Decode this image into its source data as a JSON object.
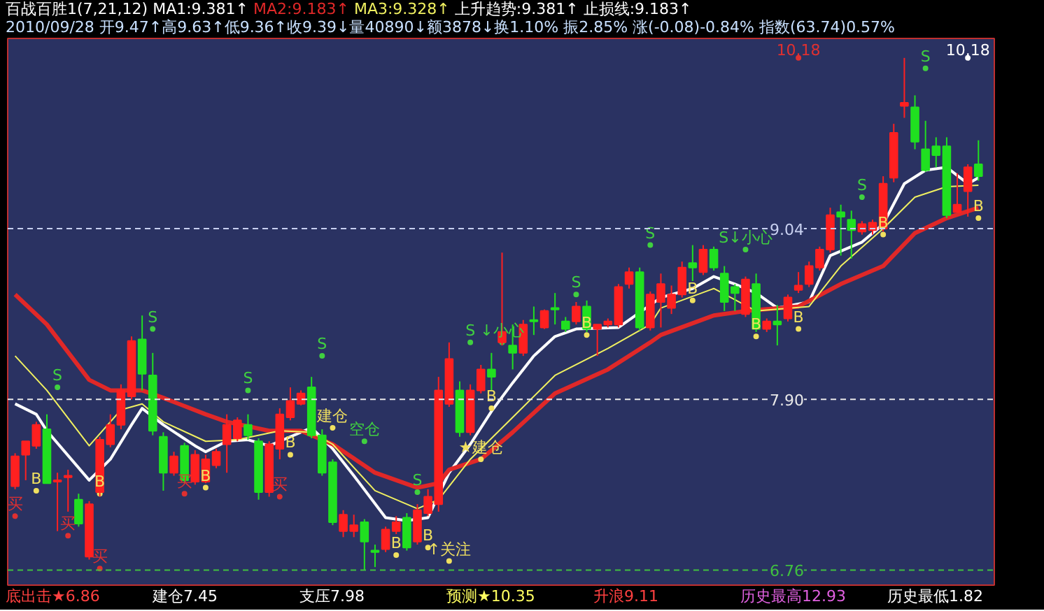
{
  "chart_data": {
    "type": "candlestick",
    "title": "百战百胜1(7,21,12)",
    "subtitle": "2010/09/28 开9.47↑高9.63↑低9.36↑收9.39↓量40890↓额3878↓换1.10% 振2.85% 涨(-0.08)-0.84% 指数(63.74)0.57%",
    "categories": [
      null,
      null,
      null,
      null,
      null,
      null,
      null,
      null,
      null,
      null,
      null,
      null,
      null,
      null,
      null,
      null,
      null,
      null,
      null,
      null,
      null,
      null,
      null,
      null,
      null,
      null,
      null,
      null,
      null,
      null,
      null,
      null,
      null,
      null,
      null,
      null,
      null,
      null,
      null,
      null,
      null,
      null,
      null,
      null,
      null,
      null,
      null,
      null,
      null,
      null,
      null,
      null,
      null,
      null,
      null,
      null,
      null,
      null,
      null,
      null,
      null,
      null,
      null,
      null,
      null,
      null,
      null,
      null,
      null,
      null,
      null,
      null,
      null,
      null,
      null,
      null,
      null,
      null,
      null,
      null,
      null,
      null,
      null,
      null,
      null,
      null,
      null,
      null,
      null,
      null,
      null,
      null
    ],
    "ohlc": [
      [
        7.32,
        7.54,
        7.3,
        7.52
      ],
      [
        7.53,
        7.62,
        7.36,
        7.62
      ],
      [
        7.59,
        7.75,
        7.57,
        7.73
      ],
      [
        7.7,
        7.8,
        7.34,
        7.34
      ],
      [
        7.35,
        7.41,
        7.02,
        7.36
      ],
      [
        7.38,
        7.43,
        7.15,
        7.39
      ],
      [
        7.23,
        7.27,
        7.05,
        7.07
      ],
      [
        6.85,
        7.22,
        6.83,
        7.2
      ],
      [
        7.28,
        7.65,
        7.25,
        7.63
      ],
      [
        7.6,
        7.8,
        7.58,
        7.73
      ],
      [
        7.73,
        8.0,
        7.7,
        7.96
      ],
      [
        7.92,
        8.32,
        7.9,
        8.29
      ],
      [
        8.3,
        8.46,
        7.96,
        8.07
      ],
      [
        8.06,
        8.21,
        7.66,
        7.69
      ],
      [
        7.65,
        7.68,
        7.29,
        7.41
      ],
      [
        7.41,
        7.55,
        7.39,
        7.52
      ],
      [
        7.59,
        7.61,
        7.34,
        7.36
      ],
      [
        7.35,
        7.56,
        7.33,
        7.53
      ],
      [
        7.35,
        7.53,
        7.34,
        7.5
      ],
      [
        7.46,
        7.57,
        7.44,
        7.55
      ],
      [
        7.6,
        7.8,
        7.41,
        7.73
      ],
      [
        7.64,
        7.78,
        7.62,
        7.76
      ],
      [
        7.73,
        7.8,
        7.63,
        7.66
      ],
      [
        7.62,
        7.64,
        7.23,
        7.28
      ],
      [
        7.28,
        7.62,
        7.25,
        7.6
      ],
      [
        7.57,
        7.84,
        7.5,
        7.8
      ],
      [
        7.78,
        7.98,
        7.76,
        7.89
      ],
      [
        7.87,
        7.96,
        7.86,
        7.94
      ],
      [
        7.98,
        8.05,
        7.64,
        7.66
      ],
      [
        7.66,
        7.7,
        7.39,
        7.41
      ],
      [
        7.48,
        7.5,
        7.06,
        7.08
      ],
      [
        7.02,
        7.16,
        6.98,
        7.13
      ],
      [
        7.02,
        7.13,
        6.98,
        7.06
      ],
      [
        7.08,
        7.1,
        6.76,
        6.95
      ],
      [
        6.89,
        6.93,
        6.78,
        6.88
      ],
      [
        6.9,
        7.05,
        6.88,
        7.03
      ],
      [
        7.02,
        7.12,
        7.0,
        7.08
      ],
      [
        7.11,
        7.14,
        6.89,
        6.91
      ],
      [
        6.95,
        7.2,
        6.93,
        7.16
      ],
      [
        7.14,
        7.3,
        7.12,
        7.25
      ],
      [
        7.2,
        8.05,
        7.15,
        7.96
      ],
      [
        7.87,
        8.28,
        7.85,
        8.17
      ],
      [
        7.96,
        8.02,
        7.65,
        7.68
      ],
      [
        7.68,
        8.0,
        7.66,
        7.96
      ],
      [
        7.96,
        8.13,
        7.94,
        8.1
      ],
      [
        8.1,
        8.21,
        7.96,
        8.05
      ],
      [
        8.28,
        8.88,
        8.26,
        8.35
      ],
      [
        8.26,
        8.4,
        8.1,
        8.21
      ],
      [
        8.21,
        8.43,
        8.19,
        8.4
      ],
      [
        8.43,
        8.52,
        8.33,
        8.42
      ],
      [
        8.38,
        8.5,
        8.37,
        8.49
      ],
      [
        8.51,
        8.61,
        8.4,
        8.5
      ],
      [
        8.42,
        8.45,
        8.35,
        8.37
      ],
      [
        8.42,
        8.55,
        8.4,
        8.52
      ],
      [
        8.52,
        8.56,
        8.35,
        8.37
      ],
      [
        8.37,
        8.4,
        8.19,
        8.4
      ],
      [
        8.4,
        8.44,
        8.38,
        8.42
      ],
      [
        8.4,
        8.67,
        8.38,
        8.65
      ],
      [
        8.67,
        8.78,
        8.64,
        8.75
      ],
      [
        8.75,
        8.78,
        8.36,
        8.38
      ],
      [
        8.38,
        8.62,
        8.36,
        8.6
      ],
      [
        8.55,
        8.74,
        8.38,
        8.67
      ],
      [
        8.51,
        8.66,
        8.47,
        8.6
      ],
      [
        8.6,
        8.82,
        8.58,
        8.78
      ],
      [
        8.81,
        8.93,
        8.69,
        8.78
      ],
      [
        8.75,
        8.93,
        8.73,
        8.9
      ],
      [
        8.9,
        8.92,
        8.76,
        8.78
      ],
      [
        8.74,
        8.79,
        8.49,
        8.55
      ],
      [
        8.65,
        8.67,
        8.49,
        8.61
      ],
      [
        8.47,
        8.72,
        8.45,
        8.7
      ],
      [
        8.67,
        8.74,
        8.35,
        8.37
      ],
      [
        8.37,
        8.44,
        8.35,
        8.42
      ],
      [
        8.42,
        8.53,
        8.26,
        8.4
      ],
      [
        8.44,
        8.6,
        8.42,
        8.58
      ],
      [
        8.63,
        8.75,
        8.61,
        8.66
      ],
      [
        8.67,
        8.82,
        8.65,
        8.79
      ],
      [
        8.78,
        8.92,
        8.76,
        8.9
      ],
      [
        8.9,
        9.18,
        8.88,
        9.13
      ],
      [
        9.15,
        9.2,
        8.86,
        9.12
      ],
      [
        9.1,
        9.16,
        8.84,
        9.03
      ],
      [
        9.02,
        9.09,
        9.0,
        9.07
      ],
      [
        9.03,
        9.1,
        9.0,
        9.08
      ],
      [
        9.04,
        9.39,
        9.02,
        9.34
      ],
      [
        9.38,
        9.74,
        9.35,
        9.68
      ],
      [
        9.86,
        10.18,
        9.78,
        9.88
      ],
      [
        9.85,
        9.93,
        9.57,
        9.62
      ],
      [
        9.57,
        9.76,
        9.42,
        9.43
      ],
      [
        9.59,
        9.65,
        9.45,
        9.53
      ],
      [
        9.59,
        9.65,
        9.11,
        9.13
      ],
      [
        9.15,
        9.41,
        9.15,
        9.2
      ],
      [
        9.29,
        9.47,
        9.12,
        9.45
      ],
      [
        9.47,
        9.63,
        9.36,
        9.39
      ]
    ],
    "series": [
      {
        "name": "MA1:9.381↑",
        "type": "line",
        "color": "#ffffff",
        "values": [
          7.87,
          null,
          7.8,
          7.69,
          null,
          null,
          null,
          7.36,
          null,
          7.5,
          null,
          7.73,
          7.84,
          null,
          7.73,
          null,
          null,
          7.59,
          7.55,
          null,
          7.62,
          null,
          7.63,
          null,
          7.59,
          7.62,
          null,
          null,
          7.71,
          null,
          7.57,
          null,
          7.39,
          null,
          null,
          7.11,
          null,
          7.09,
          null,
          7.11,
          null,
          7.41,
          null,
          7.6,
          null,
          7.82,
          null,
          8.01,
          null,
          8.19,
          null,
          8.32,
          null,
          8.37,
          null,
          null,
          null,
          8.38,
          null,
          null,
          null,
          8.58,
          null,
          null,
          8.64,
          null,
          8.72,
          null,
          8.67,
          null,
          8.61,
          null,
          8.51,
          null,
          null,
          8.55,
          null,
          8.86,
          null,
          null,
          8.95,
          null,
          9.07,
          null,
          9.34,
          null,
          9.43,
          null,
          9.45,
          null,
          9.34,
          9.38
        ]
      },
      {
        "name": "MA2:9.183↑",
        "type": "line",
        "color": "#e02828",
        "values": [
          8.6,
          null,
          null,
          8.4,
          null,
          null,
          null,
          8.03,
          null,
          7.96,
          null,
          null,
          7.96,
          null,
          7.91,
          null,
          null,
          null,
          7.8,
          null,
          7.75,
          null,
          null,
          null,
          7.69,
          null,
          null,
          7.69,
          null,
          null,
          7.6,
          null,
          null,
          null,
          7.41,
          null,
          null,
          null,
          7.31,
          null,
          7.34,
          7.43,
          null,
          null,
          7.5,
          null,
          null,
          7.68,
          null,
          null,
          null,
          7.94,
          null,
          null,
          null,
          null,
          8.1,
          null,
          null,
          null,
          8.28,
          8.33,
          null,
          null,
          null,
          null,
          8.46,
          null,
          null,
          8.49,
          null,
          null,
          null,
          null,
          8.52,
          null,
          null,
          null,
          8.67,
          null,
          null,
          null,
          8.79,
          null,
          null,
          9.01,
          null,
          null,
          9.11,
          null,
          null,
          9.18
        ]
      },
      {
        "name": "MA3:9.328↑",
        "type": "line",
        "color": "#f0f060",
        "values": [
          8.19,
          null,
          null,
          7.96,
          null,
          null,
          null,
          7.59,
          null,
          null,
          7.83,
          null,
          7.87,
          null,
          7.75,
          null,
          null,
          null,
          7.62,
          null,
          null,
          7.63,
          null,
          null,
          null,
          7.69,
          null,
          null,
          7.68,
          null,
          7.6,
          null,
          null,
          null,
          7.29,
          null,
          null,
          null,
          7.17,
          null,
          7.23,
          null,
          null,
          7.5,
          null,
          null,
          null,
          7.78,
          null,
          null,
          null,
          8.06,
          null,
          null,
          null,
          null,
          8.24,
          null,
          null,
          null,
          8.4,
          8.51,
          null,
          null,
          null,
          null,
          8.64,
          null,
          null,
          null,
          8.49,
          null,
          null,
          null,
          null,
          8.52,
          null,
          null,
          8.79,
          null,
          null,
          null,
          9.04,
          null,
          null,
          9.25,
          null,
          null,
          9.32,
          null,
          null,
          9.33
        ]
      },
      {
        "type": "scatter",
        "marker": "circle",
        "color": "#40d040",
        "values": [
          null,
          null,
          null,
          null,
          7.98,
          null,
          null,
          null,
          null,
          null,
          null,
          null,
          null,
          8.37,
          null,
          null,
          null,
          null,
          null,
          null,
          null,
          null,
          7.96,
          null,
          null,
          null,
          null,
          null,
          null,
          8.19,
          null,
          null,
          null,
          7.62,
          null,
          null,
          null,
          null,
          7.28,
          null,
          null,
          null,
          null,
          8.28,
          null,
          null,
          8.28,
          null,
          null,
          null,
          null,
          null,
          null,
          8.6,
          null,
          null,
          null,
          null,
          null,
          null,
          8.93,
          null,
          null,
          null,
          null,
          null,
          null,
          null,
          null,
          8.9,
          null,
          null,
          null,
          null,
          null,
          null,
          null,
          null,
          null,
          null,
          9.25,
          null,
          null,
          null,
          null,
          null,
          10.11,
          null,
          null,
          null,
          null,
          null
        ],
        "value_labels": [
          null,
          null,
          null,
          null,
          "S",
          null,
          null,
          null,
          null,
          null,
          null,
          null,
          null,
          "S",
          null,
          null,
          null,
          null,
          null,
          null,
          null,
          null,
          "S",
          null,
          null,
          null,
          null,
          null,
          null,
          "S",
          null,
          null,
          null,
          "空仓",
          null,
          null,
          null,
          null,
          "S",
          null,
          null,
          null,
          null,
          "S",
          null,
          null,
          "↓小心",
          null,
          null,
          null,
          null,
          null,
          null,
          "S",
          null,
          null,
          null,
          null,
          null,
          null,
          "S",
          null,
          null,
          null,
          null,
          null,
          null,
          null,
          null,
          "S↓小心",
          null,
          null,
          null,
          null,
          null,
          null,
          null,
          null,
          null,
          null,
          "S",
          null,
          null,
          null,
          null,
          null,
          "S",
          null,
          null,
          null,
          null,
          null
        ]
      },
      {
        "type": "scatter",
        "marker": "circle",
        "color": "#f0e060",
        "values": [
          null,
          null,
          7.29,
          null,
          null,
          null,
          null,
          null,
          7.27,
          null,
          null,
          null,
          null,
          null,
          null,
          null,
          null,
          null,
          7.31,
          null,
          null,
          null,
          null,
          null,
          null,
          null,
          7.53,
          null,
          null,
          null,
          7.71,
          null,
          null,
          null,
          null,
          null,
          6.86,
          null,
          null,
          6.91,
          null,
          6.82,
          null,
          null,
          7.5,
          7.84,
          null,
          null,
          null,
          null,
          null,
          null,
          null,
          null,
          8.33,
          null,
          null,
          null,
          null,
          null,
          null,
          null,
          null,
          null,
          8.56,
          null,
          null,
          null,
          null,
          null,
          8.32,
          null,
          null,
          null,
          8.37,
          null,
          null,
          null,
          null,
          null,
          null,
          null,
          9.0,
          null,
          null,
          null,
          null,
          null,
          null,
          null,
          null,
          9.11
        ],
        "value_labels": [
          null,
          null,
          "B",
          null,
          null,
          null,
          null,
          null,
          "B",
          null,
          null,
          null,
          null,
          null,
          null,
          null,
          null,
          null,
          "B",
          null,
          null,
          null,
          null,
          null,
          null,
          null,
          "B",
          null,
          null,
          null,
          "建仓",
          null,
          null,
          null,
          null,
          null,
          "B",
          null,
          null,
          "B",
          null,
          "↑关注",
          null,
          null,
          "★建仓",
          "B",
          null,
          null,
          null,
          null,
          null,
          null,
          null,
          null,
          "B",
          null,
          null,
          null,
          null,
          null,
          null,
          null,
          null,
          null,
          "B",
          null,
          null,
          null,
          null,
          null,
          "B",
          null,
          null,
          null,
          "B",
          null,
          null,
          null,
          null,
          null,
          null,
          null,
          "B",
          null,
          null,
          null,
          null,
          null,
          null,
          null,
          null,
          "B"
        ]
      },
      {
        "type": "scatter",
        "marker": "circle",
        "color": "#e03030",
        "values": [
          7.12,
          null,
          null,
          null,
          null,
          6.99,
          null,
          null,
          6.77,
          null,
          null,
          null,
          null,
          null,
          null,
          null,
          7.27,
          null,
          null,
          null,
          null,
          null,
          null,
          null,
          null,
          7.25,
          null,
          null,
          null,
          null,
          null,
          null,
          null,
          null,
          null,
          null,
          null,
          null,
          null,
          null,
          null,
          null,
          null,
          null,
          null,
          null,
          null,
          null,
          null,
          null,
          null,
          null,
          null,
          null,
          null,
          null,
          null,
          null,
          null,
          null,
          null,
          null,
          null,
          null,
          null,
          null,
          null,
          null,
          null,
          null,
          null,
          null,
          null,
          null,
          10.18,
          null,
          null,
          null,
          null,
          null,
          null,
          null,
          null,
          null,
          null,
          null,
          null,
          null,
          null,
          null,
          null,
          null
        ],
        "value_labels": [
          "买",
          null,
          null,
          null,
          null,
          "买",
          null,
          null,
          "买",
          null,
          null,
          null,
          null,
          null,
          null,
          null,
          "买",
          null,
          null,
          null,
          null,
          null,
          null,
          null,
          null,
          "买",
          null,
          null,
          null,
          null,
          null,
          null,
          null,
          null,
          null,
          null,
          null,
          null,
          null,
          null,
          null,
          null,
          null,
          null,
          null,
          null,
          null,
          null,
          null,
          null,
          null,
          null,
          null,
          null,
          null,
          null,
          null,
          null,
          null,
          null,
          null,
          null,
          null,
          null,
          null,
          null,
          null,
          null,
          null,
          null,
          null,
          null,
          null,
          null,
          "10.18",
          null,
          null,
          null,
          null,
          null,
          null,
          null,
          null,
          null,
          null,
          null,
          null,
          null,
          null,
          null,
          null,
          null
        ]
      },
      {
        "type": "scatter",
        "marker": "circle",
        "color": "#ffffff",
        "values": [
          null,
          null,
          null,
          null,
          null,
          null,
          null,
          null,
          null,
          null,
          null,
          null,
          null,
          null,
          null,
          null,
          null,
          null,
          null,
          null,
          null,
          null,
          null,
          null,
          null,
          null,
          null,
          null,
          null,
          null,
          null,
          null,
          null,
          null,
          null,
          null,
          null,
          null,
          null,
          null,
          null,
          null,
          null,
          null,
          null,
          null,
          null,
          null,
          null,
          null,
          null,
          null,
          null,
          null,
          null,
          null,
          null,
          null,
          null,
          null,
          null,
          null,
          null,
          null,
          null,
          null,
          null,
          null,
          null,
          null,
          null,
          null,
          null,
          null,
          null,
          null,
          null,
          null,
          null,
          null,
          null,
          null,
          null,
          null,
          null,
          null,
          null,
          null,
          null,
          null,
          10.18,
          null
        ],
        "value_labels": [
          null,
          null,
          null,
          null,
          null,
          null,
          null,
          null,
          null,
          null,
          null,
          null,
          null,
          null,
          null,
          null,
          null,
          null,
          null,
          null,
          null,
          null,
          null,
          null,
          null,
          null,
          null,
          null,
          null,
          null,
          null,
          null,
          null,
          null,
          null,
          null,
          null,
          null,
          null,
          null,
          null,
          null,
          null,
          null,
          null,
          null,
          null,
          null,
          null,
          null,
          null,
          null,
          null,
          null,
          null,
          null,
          null,
          null,
          null,
          null,
          null,
          null,
          null,
          null,
          null,
          null,
          null,
          null,
          null,
          null,
          null,
          null,
          null,
          null,
          null,
          null,
          null,
          null,
          null,
          null,
          null,
          null,
          null,
          null,
          null,
          null,
          null,
          null,
          null,
          null,
          "10.18",
          null
        ]
      }
    ],
    "ylim": [
      6.65,
      10.31
    ],
    "tick_labels": false,
    "ref_lines": [
      {
        "axis": "y",
        "value": 9.04,
        "label": "9.04",
        "color": "#c8d0f0",
        "line_style": "dashed"
      },
      {
        "axis": "y",
        "value": 7.9,
        "label": "7.90",
        "color": "#e8e8e8",
        "line_style": "dashed"
      },
      {
        "axis": "y",
        "value": 6.76,
        "label": "6.76",
        "color": "#40c040",
        "line_style": "dashed"
      }
    ],
    "annotations": [
      "上升趋势:9.381↑",
      "止损线:9.183↑",
      "底出击★6.86",
      "建仓7.45",
      "支压7.98",
      "预测★10.35",
      "升浪9.11",
      "历史最高12.93",
      "历史最低1.82"
    ]
  }
}
